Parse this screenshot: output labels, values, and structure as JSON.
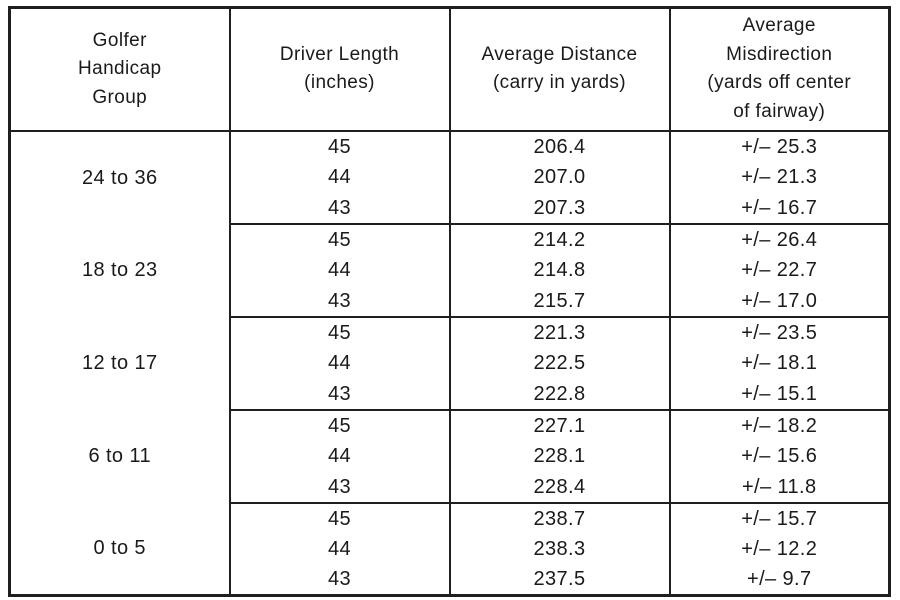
{
  "page": {
    "colors": {
      "line": "#1f1f1f",
      "text": "#1a1a1c",
      "bg": "#ffffff"
    }
  },
  "table": {
    "headers": [
      {
        "lines": [
          "Golfer",
          "Handicap",
          "Group"
        ]
      },
      {
        "lines": [
          "Driver Length",
          "(inches)"
        ]
      },
      {
        "lines": [
          "Average Distance",
          "(carry in yards)"
        ]
      },
      {
        "lines": [
          "Average",
          "Misdirection",
          "(yards off center",
          "of fairway)"
        ]
      }
    ],
    "groups": [
      {
        "label": "24 to 36",
        "rows": [
          {
            "driver_length": "45",
            "avg_distance": "206.4",
            "avg_misdirection": "+/– 25.3"
          },
          {
            "driver_length": "44",
            "avg_distance": "207.0",
            "avg_misdirection": "+/– 21.3"
          },
          {
            "driver_length": "43",
            "avg_distance": "207.3",
            "avg_misdirection": "+/– 16.7"
          }
        ]
      },
      {
        "label": "18 to 23",
        "rows": [
          {
            "driver_length": "45",
            "avg_distance": "214.2",
            "avg_misdirection": "+/– 26.4"
          },
          {
            "driver_length": "44",
            "avg_distance": "214.8",
            "avg_misdirection": "+/– 22.7"
          },
          {
            "driver_length": "43",
            "avg_distance": "215.7",
            "avg_misdirection": "+/– 17.0"
          }
        ]
      },
      {
        "label": "12 to 17",
        "rows": [
          {
            "driver_length": "45",
            "avg_distance": "221.3",
            "avg_misdirection": "+/– 23.5"
          },
          {
            "driver_length": "44",
            "avg_distance": "222.5",
            "avg_misdirection": "+/– 18.1"
          },
          {
            "driver_length": "43",
            "avg_distance": "222.8",
            "avg_misdirection": "+/– 15.1"
          }
        ]
      },
      {
        "label": "6 to 11",
        "rows": [
          {
            "driver_length": "45",
            "avg_distance": "227.1",
            "avg_misdirection": "+/– 18.2"
          },
          {
            "driver_length": "44",
            "avg_distance": "228.1",
            "avg_misdirection": "+/– 15.6"
          },
          {
            "driver_length": "43",
            "avg_distance": "228.4",
            "avg_misdirection": "+/– 11.8"
          }
        ]
      },
      {
        "label": "0 to 5",
        "rows": [
          {
            "driver_length": "45",
            "avg_distance": "238.7",
            "avg_misdirection": "+/– 15.7"
          },
          {
            "driver_length": "44",
            "avg_distance": "238.3",
            "avg_misdirection": "+/– 12.2"
          },
          {
            "driver_length": "43",
            "avg_distance": "237.5",
            "avg_misdirection": "+/– 9.7"
          }
        ]
      }
    ]
  }
}
